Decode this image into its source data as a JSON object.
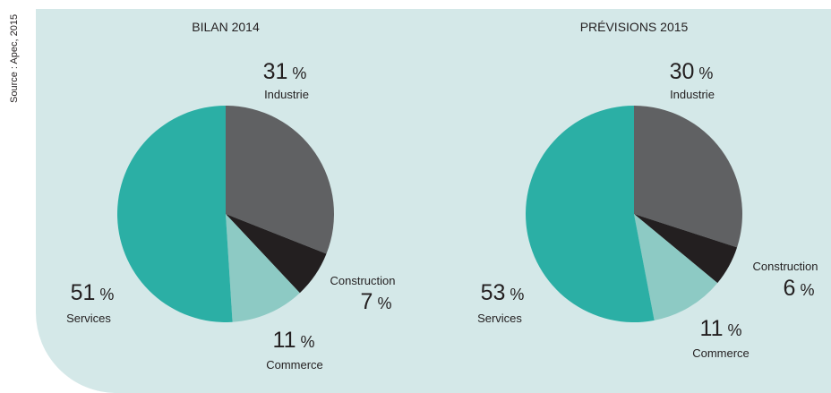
{
  "source": "Source : Apec, 2015",
  "chart_data": [
    {
      "type": "pie",
      "title": "BILAN 2014",
      "unit": "%",
      "categories": [
        "Industrie",
        "Construction",
        "Commerce",
        "Services"
      ],
      "values": [
        31,
        7,
        11,
        51
      ],
      "colors": [
        "#606163",
        "#231f20",
        "#8dcac4",
        "#2bafa5"
      ]
    },
    {
      "type": "pie",
      "title": "PRÉVISIONS 2015",
      "unit": "%",
      "categories": [
        "Industrie",
        "Construction",
        "Commerce",
        "Services"
      ],
      "values": [
        30,
        6,
        11,
        53
      ],
      "colors": [
        "#606163",
        "#231f20",
        "#8dcac4",
        "#2bafa5"
      ]
    }
  ]
}
